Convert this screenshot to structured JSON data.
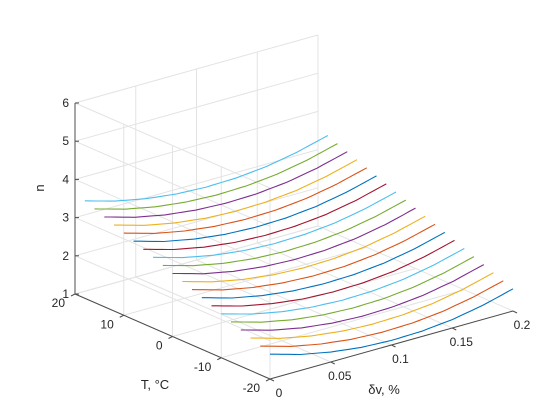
{
  "chart_data": {
    "type": "line",
    "projection": "3d",
    "grid": true,
    "title": "",
    "xlabel": "δv, %",
    "ylabel": "T, °C",
    "zlabel": "n",
    "xlim": [
      0,
      0.2
    ],
    "ylim": [
      -20,
      20
    ],
    "zlim": [
      1,
      6
    ],
    "xticks": [
      0,
      0.05,
      0.1,
      0.15,
      0.2
    ],
    "xtick_labels": [
      "0",
      "0.05",
      "0.1",
      "0.15",
      "0.2"
    ],
    "yticks": [
      -20,
      -10,
      0,
      10,
      20
    ],
    "ytick_labels": [
      "-20",
      "-10",
      "0",
      "10",
      "20"
    ],
    "zticks": [
      1,
      2,
      3,
      4,
      5,
      6
    ],
    "ztick_labels": [
      "1",
      "2",
      "3",
      "4",
      "5",
      "6"
    ],
    "x": [
      0,
      0.025,
      0.05,
      0.075,
      0.1,
      0.125,
      0.15,
      0.175,
      0.2
    ],
    "series": [
      {
        "T": -20,
        "color": "#0072BD",
        "values": [
          1.65,
          1.42,
          1.26,
          1.16,
          1.12,
          1.14,
          1.22,
          1.37,
          1.58
        ]
      },
      {
        "T": -18,
        "color": "#D95319",
        "values": [
          1.75,
          1.52,
          1.36,
          1.26,
          1.22,
          1.24,
          1.32,
          1.47,
          1.68
        ]
      },
      {
        "T": -16,
        "color": "#EDB120",
        "values": [
          1.85,
          1.62,
          1.46,
          1.36,
          1.32,
          1.34,
          1.42,
          1.57,
          1.78
        ]
      },
      {
        "T": -14,
        "color": "#7E2F8E",
        "values": [
          1.95,
          1.72,
          1.56,
          1.46,
          1.42,
          1.44,
          1.52,
          1.67,
          1.88
        ]
      },
      {
        "T": -12,
        "color": "#77AC30",
        "values": [
          2.05,
          1.82,
          1.66,
          1.56,
          1.52,
          1.54,
          1.62,
          1.77,
          1.98
        ]
      },
      {
        "T": -10,
        "color": "#4DBEEE",
        "values": [
          2.15,
          1.92,
          1.76,
          1.66,
          1.62,
          1.64,
          1.72,
          1.87,
          2.08
        ]
      },
      {
        "T": -8,
        "color": "#A2142F",
        "values": [
          2.25,
          2.02,
          1.86,
          1.76,
          1.72,
          1.74,
          1.82,
          1.97,
          2.18
        ]
      },
      {
        "T": -6,
        "color": "#0072BD",
        "values": [
          2.35,
          2.12,
          1.96,
          1.86,
          1.82,
          1.84,
          1.92,
          2.07,
          2.28
        ]
      },
      {
        "T": -4,
        "color": "#D95319",
        "values": [
          2.45,
          2.22,
          2.06,
          1.96,
          1.92,
          1.94,
          2.02,
          2.17,
          2.38
        ]
      },
      {
        "T": -2,
        "color": "#EDB120",
        "values": [
          2.55,
          2.32,
          2.16,
          2.06,
          2.02,
          2.04,
          2.12,
          2.27,
          2.48
        ]
      },
      {
        "T": 0,
        "color": "#7E2F8E",
        "values": [
          2.65,
          2.42,
          2.26,
          2.16,
          2.12,
          2.14,
          2.22,
          2.37,
          2.58
        ]
      },
      {
        "T": 2,
        "color": "#77AC30",
        "values": [
          2.75,
          2.52,
          2.36,
          2.26,
          2.22,
          2.24,
          2.32,
          2.47,
          2.68
        ]
      },
      {
        "T": 4,
        "color": "#4DBEEE",
        "values": [
          2.85,
          2.62,
          2.46,
          2.36,
          2.32,
          2.34,
          2.42,
          2.57,
          2.78
        ]
      },
      {
        "T": 6,
        "color": "#A2142F",
        "values": [
          2.95,
          2.72,
          2.56,
          2.46,
          2.42,
          2.44,
          2.52,
          2.67,
          2.88
        ]
      },
      {
        "T": 8,
        "color": "#0072BD",
        "values": [
          3.05,
          2.82,
          2.66,
          2.56,
          2.52,
          2.54,
          2.62,
          2.77,
          2.98
        ]
      },
      {
        "T": 10,
        "color": "#D95319",
        "values": [
          3.15,
          2.92,
          2.76,
          2.66,
          2.62,
          2.64,
          2.72,
          2.87,
          3.08
        ]
      },
      {
        "T": 12,
        "color": "#EDB120",
        "values": [
          3.25,
          3.02,
          2.86,
          2.76,
          2.72,
          2.74,
          2.82,
          2.97,
          3.18
        ]
      },
      {
        "T": 14,
        "color": "#7E2F8E",
        "values": [
          3.35,
          3.12,
          2.96,
          2.86,
          2.82,
          2.84,
          2.92,
          3.07,
          3.28
        ]
      },
      {
        "T": 16,
        "color": "#77AC30",
        "values": [
          3.45,
          3.22,
          3.06,
          2.96,
          2.92,
          2.94,
          3.02,
          3.17,
          3.38
        ]
      },
      {
        "T": 18,
        "color": "#4DBEEE",
        "values": [
          3.55,
          3.32,
          3.16,
          3.06,
          3.02,
          3.04,
          3.12,
          3.27,
          3.48
        ]
      }
    ]
  }
}
